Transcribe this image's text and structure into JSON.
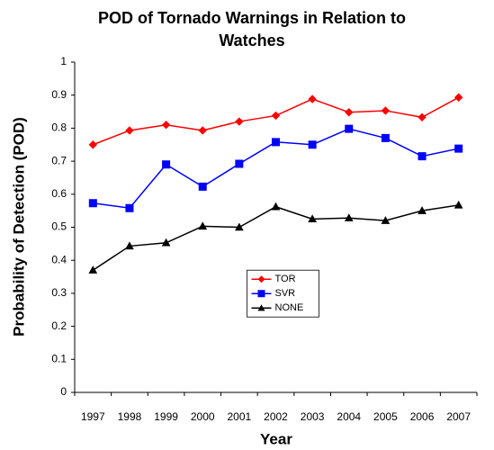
{
  "chart_data": {
    "type": "line",
    "title": "POD of Tornado Warnings in Relation to Watches",
    "x_label": "Year",
    "y_label": "Probability of Detection (POD)",
    "categories": [
      "1997",
      "1998",
      "1999",
      "2000",
      "2001",
      "2002",
      "2003",
      "2004",
      "2005",
      "2006",
      "2007"
    ],
    "series": [
      {
        "name": "TOR",
        "color": "#ff0000",
        "marker": "diamond",
        "values": [
          0.75,
          0.793,
          0.81,
          0.793,
          0.82,
          0.838,
          0.888,
          0.848,
          0.853,
          0.833,
          0.893
        ]
      },
      {
        "name": "SVR",
        "color": "#0000ff",
        "marker": "square",
        "values": [
          0.573,
          0.558,
          0.69,
          0.623,
          0.692,
          0.758,
          0.75,
          0.798,
          0.77,
          0.715,
          0.738
        ]
      },
      {
        "name": "NONE",
        "color": "#000000",
        "marker": "triangle",
        "values": [
          0.37,
          0.443,
          0.453,
          0.503,
          0.5,
          0.562,
          0.525,
          0.528,
          0.52,
          0.55,
          0.567
        ]
      }
    ],
    "ylim": [
      0,
      1
    ],
    "yticks": [
      0,
      0.1,
      0.2,
      0.3,
      0.4,
      0.5,
      0.6,
      0.7,
      0.8,
      0.9,
      1
    ],
    "grid": false,
    "legend": "center"
  }
}
